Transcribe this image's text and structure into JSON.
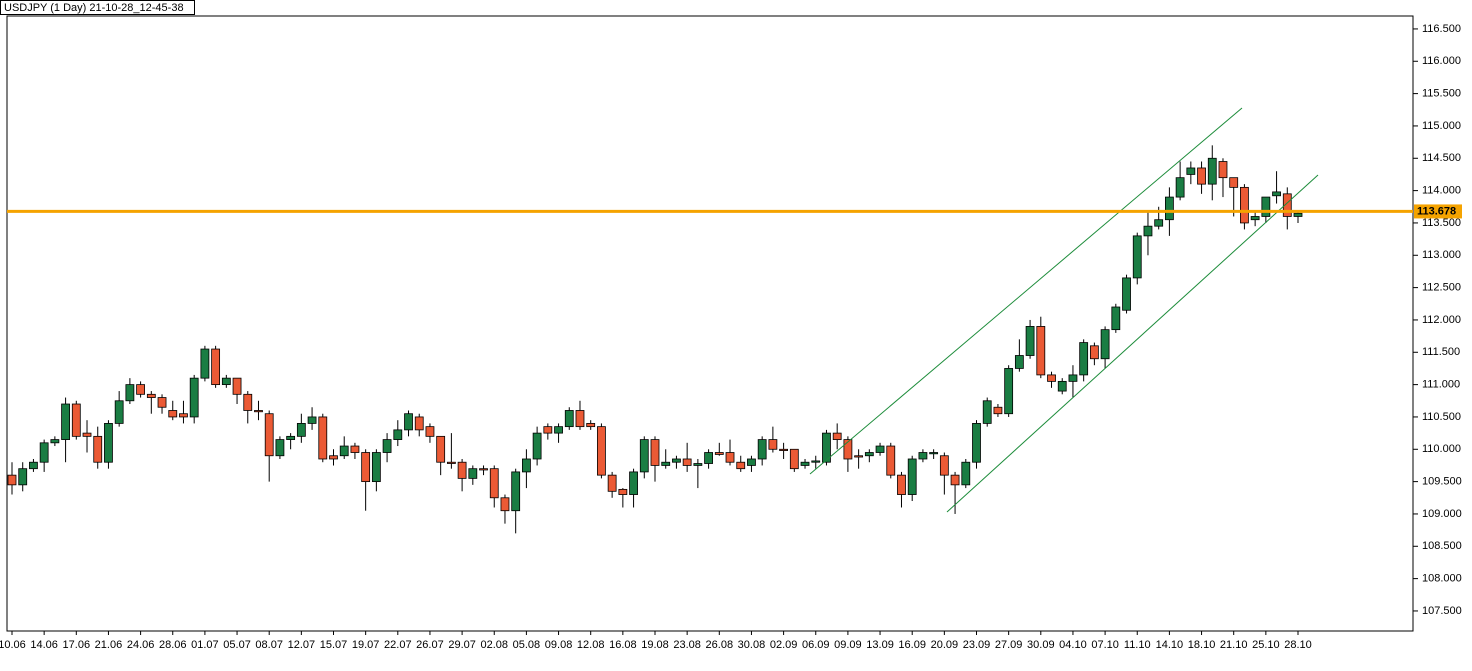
{
  "chart_data": {
    "type": "candlestick",
    "title": "USDJPY (1 Day) 21-10-28_12-45-38",
    "categories": [
      "10.06",
      null,
      null,
      "14.06",
      null,
      null,
      "17.06",
      null,
      null,
      "21.06",
      null,
      null,
      "24.06",
      null,
      null,
      "28.06",
      null,
      null,
      "01.07",
      null,
      null,
      "05.07",
      null,
      null,
      "08.07",
      null,
      null,
      "12.07",
      null,
      null,
      "15.07",
      null,
      null,
      "19.07",
      null,
      null,
      "22.07",
      null,
      null,
      "26.07",
      null,
      null,
      "29.07",
      null,
      null,
      "02.08",
      null,
      null,
      "05.08",
      null,
      null,
      "09.08",
      null,
      null,
      "12.08",
      null,
      null,
      "16.08",
      null,
      null,
      "19.08",
      null,
      null,
      "23.08",
      null,
      null,
      "26.08",
      null,
      null,
      "30.08",
      null,
      null,
      "02.09",
      null,
      null,
      "06.09",
      null,
      null,
      "09.09",
      null,
      null,
      "13.09",
      null,
      null,
      "16.09",
      null,
      null,
      "20.09",
      null,
      null,
      "23.09",
      null,
      null,
      "27.09",
      null,
      null,
      "30.09",
      null,
      null,
      "04.10",
      null,
      null,
      "07.10",
      null,
      null,
      "11.10",
      null,
      null,
      "14.10",
      null,
      null,
      "18.10",
      null,
      null,
      "21.10",
      null,
      null,
      "25.10",
      null,
      null,
      "28.10"
    ],
    "open": [
      109.6,
      109.45,
      109.7,
      109.8,
      110.1,
      110.15,
      110.7,
      110.25,
      110.2,
      109.8,
      110.4,
      110.75,
      111.0,
      110.85,
      110.8,
      110.6,
      110.55,
      110.5,
      111.1,
      111.55,
      111.0,
      111.1,
      110.85,
      110.6,
      110.55,
      109.9,
      110.15,
      110.2,
      110.4,
      110.5,
      109.9,
      109.9,
      110.05,
      109.95,
      109.5,
      109.95,
      110.15,
      110.3,
      110.5,
      110.35,
      110.2,
      109.8,
      109.8,
      109.55,
      109.7,
      109.7,
      109.25,
      109.05,
      109.65,
      109.85,
      110.35,
      110.25,
      110.35,
      110.6,
      110.4,
      110.35,
      109.6,
      109.38,
      109.3,
      109.65,
      110.15,
      109.75,
      109.8,
      109.85,
      109.75,
      109.78,
      109.95,
      109.95,
      109.8,
      109.75,
      109.85,
      110.15,
      110.0,
      110.0,
      109.75,
      109.8,
      109.8,
      110.25,
      110.15,
      109.9,
      109.9,
      109.95,
      110.05,
      109.6,
      109.3,
      109.85,
      109.93,
      109.9,
      109.6,
      109.45,
      109.8,
      110.4,
      110.65,
      110.55,
      111.25,
      111.45,
      111.9,
      111.15,
      110.9,
      111.05,
      111.15,
      111.6,
      111.4,
      111.85,
      112.15,
      112.65,
      113.3,
      113.45,
      113.55,
      113.9,
      114.25,
      114.35,
      114.1,
      114.45,
      114.2,
      114.05,
      113.55,
      113.6,
      113.92,
      113.95,
      113.6
    ],
    "high": [
      109.8,
      109.8,
      109.85,
      110.15,
      110.2,
      110.8,
      110.75,
      110.45,
      110.35,
      110.45,
      110.9,
      111.1,
      111.05,
      110.9,
      110.85,
      110.75,
      110.75,
      111.15,
      111.6,
      111.6,
      111.15,
      111.1,
      110.9,
      110.75,
      110.6,
      110.2,
      110.25,
      110.55,
      110.65,
      110.55,
      110.0,
      110.2,
      110.1,
      110.0,
      110.0,
      110.25,
      110.45,
      110.6,
      110.55,
      110.4,
      110.2,
      110.25,
      109.85,
      109.75,
      109.75,
      109.75,
      109.3,
      109.7,
      110.0,
      110.35,
      110.4,
      110.4,
      110.65,
      110.75,
      110.45,
      110.4,
      109.65,
      109.4,
      109.7,
      110.2,
      110.2,
      110.0,
      109.9,
      110.1,
      109.85,
      110.0,
      110.1,
      110.15,
      109.9,
      109.9,
      110.2,
      110.35,
      110.1,
      110.0,
      109.85,
      109.9,
      110.3,
      110.4,
      110.2,
      110.0,
      110.0,
      110.1,
      110.1,
      109.65,
      109.9,
      110.0,
      110.0,
      109.95,
      109.65,
      109.85,
      110.45,
      110.8,
      110.7,
      111.3,
      111.7,
      112.0,
      112.05,
      111.2,
      111.1,
      111.3,
      111.7,
      111.65,
      111.9,
      112.25,
      112.7,
      113.35,
      113.7,
      113.75,
      114.05,
      114.45,
      114.45,
      114.45,
      114.7,
      114.5,
      114.2,
      114.1,
      113.7,
      113.9,
      114.3,
      114.05,
      113.7
    ],
    "low": [
      109.3,
      109.35,
      109.65,
      109.65,
      110.05,
      109.8,
      110.15,
      109.95,
      109.7,
      109.7,
      110.35,
      110.7,
      110.8,
      110.55,
      110.55,
      110.45,
      110.4,
      110.4,
      111.05,
      110.95,
      110.95,
      110.7,
      110.4,
      110.45,
      109.5,
      109.85,
      110.0,
      110.1,
      110.3,
      109.8,
      109.75,
      109.85,
      109.85,
      109.05,
      109.35,
      109.8,
      110.05,
      110.2,
      110.2,
      110.1,
      109.6,
      109.7,
      109.35,
      109.45,
      109.6,
      109.1,
      108.85,
      108.7,
      109.4,
      109.75,
      110.15,
      110.1,
      110.3,
      110.3,
      110.3,
      109.55,
      109.25,
      109.1,
      109.1,
      109.55,
      109.5,
      109.7,
      109.7,
      109.65,
      109.4,
      109.7,
      109.9,
      109.75,
      109.65,
      109.65,
      109.75,
      109.95,
      109.85,
      109.65,
      109.7,
      109.7,
      109.75,
      110.0,
      109.65,
      109.7,
      109.8,
      109.9,
      109.55,
      109.1,
      109.2,
      109.8,
      109.85,
      109.3,
      109.0,
      109.4,
      109.7,
      110.35,
      110.5,
      110.5,
      111.2,
      111.4,
      111.1,
      110.95,
      110.85,
      110.8,
      111.05,
      111.3,
      111.25,
      111.8,
      112.1,
      112.55,
      113.0,
      113.4,
      113.3,
      113.85,
      114.1,
      113.95,
      113.85,
      113.9,
      113.6,
      113.4,
      113.45,
      113.5,
      113.8,
      113.4,
      113.5
    ],
    "close": [
      109.45,
      109.7,
      109.8,
      110.1,
      110.15,
      110.7,
      110.2,
      110.2,
      109.8,
      110.4,
      110.75,
      111.0,
      110.85,
      110.8,
      110.65,
      110.5,
      110.5,
      111.1,
      111.55,
      111.0,
      111.1,
      110.85,
      110.6,
      110.58,
      109.9,
      110.15,
      110.2,
      110.4,
      110.5,
      109.85,
      109.85,
      110.05,
      109.95,
      109.5,
      109.95,
      110.15,
      110.3,
      110.55,
      110.3,
      110.2,
      109.8,
      109.78,
      109.55,
      109.7,
      109.68,
      109.25,
      109.05,
      109.65,
      109.85,
      110.25,
      110.25,
      110.35,
      110.6,
      110.35,
      110.35,
      109.6,
      109.35,
      109.3,
      109.65,
      110.15,
      109.75,
      109.8,
      109.85,
      109.75,
      109.78,
      109.95,
      109.92,
      109.8,
      109.7,
      109.85,
      110.15,
      110.0,
      109.98,
      109.7,
      109.8,
      109.82,
      110.25,
      110.15,
      109.85,
      109.88,
      109.95,
      110.05,
      109.6,
      109.3,
      109.85,
      109.95,
      109.95,
      109.6,
      109.45,
      109.8,
      110.4,
      110.75,
      110.55,
      111.25,
      111.45,
      111.9,
      111.15,
      111.05,
      111.05,
      111.15,
      111.65,
      111.4,
      111.85,
      112.2,
      112.65,
      113.3,
      113.45,
      113.55,
      113.9,
      114.2,
      114.35,
      114.1,
      114.5,
      114.2,
      114.05,
      113.5,
      113.6,
      113.9,
      113.98,
      113.6,
      113.65
    ],
    "up_color": "#1a7d43",
    "down_color": "#eb5a35",
    "ylim": [
      107.19,
      116.7
    ],
    "yticks": [
      {
        "value": 107.5,
        "label": "107.500"
      },
      {
        "value": 108,
        "label": "108.000"
      },
      {
        "value": 108.5,
        "label": "108.500"
      },
      {
        "value": 109,
        "label": "109.000"
      },
      {
        "value": 109.5,
        "label": "109.500"
      },
      {
        "value": 110,
        "label": "110.000"
      },
      {
        "value": 110.5,
        "label": "110.500"
      },
      {
        "value": 111,
        "label": "111.000"
      },
      {
        "value": 111.5,
        "label": "111.500"
      },
      {
        "value": 112,
        "label": "112.000"
      },
      {
        "value": 112.5,
        "label": "112.500"
      },
      {
        "value": 113,
        "label": "113.000"
      },
      {
        "value": 113.5,
        "label": "113.500"
      },
      {
        "value": 114,
        "label": "114.000"
      },
      {
        "value": 114.5,
        "label": "114.500"
      },
      {
        "value": 115,
        "label": "115.000"
      },
      {
        "value": 115.5,
        "label": "115.500"
      },
      {
        "value": 116,
        "label": "116.000"
      },
      {
        "value": 116.5,
        "label": "116.500"
      }
    ],
    "hline": {
      "value": 113.678,
      "color": "#f5a300"
    }
  }
}
